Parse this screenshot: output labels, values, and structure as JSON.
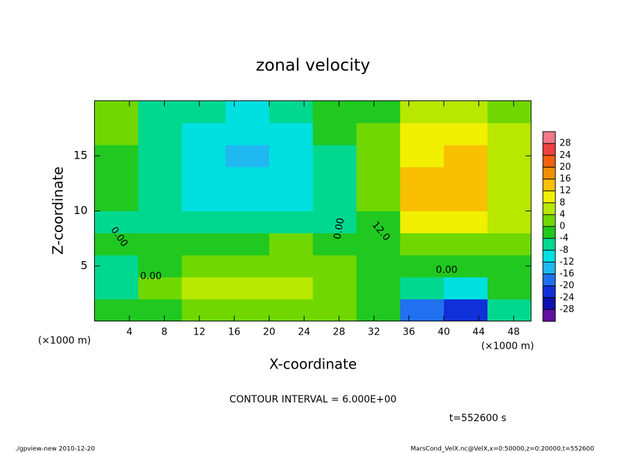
{
  "chart_data": {
    "type": "contour",
    "title": "zonal velocity",
    "x_label": "X-coordinate",
    "y_label": "Z-coordinate",
    "x_unit": "(×1000 m)",
    "y_unit": "(×1000 m)",
    "contour_interval": "CONTOUR INTERVAL = 6.000E+00",
    "time": "t=552600 s",
    "footer_left": "./gpview-new  2010-12-20",
    "footer_right": "MarsCond_VelX.nc@VelX,x=0:50000,z=0:20000,t=552600",
    "annotations": [
      "0.00",
      "0.00",
      "0.00",
      "12.0",
      "0.00"
    ],
    "xlim": [
      0,
      50
    ],
    "ylim": [
      0,
      20
    ],
    "xticks": [
      4,
      8,
      12,
      16,
      20,
      24,
      28,
      32,
      36,
      40,
      44,
      48
    ],
    "yticks": [
      5,
      10,
      15
    ],
    "x": [
      2.5,
      7.5,
      12.5,
      17.5,
      22.5,
      27.5,
      32.5,
      37.5,
      42.5,
      47.5
    ],
    "y": [
      1,
      3,
      5,
      7,
      9,
      11,
      13,
      15,
      17,
      19
    ],
    "z": [
      [
        -2,
        0,
        2,
        4,
        4,
        2,
        -2,
        -16,
        -22,
        -6
      ],
      [
        -4,
        2,
        6,
        6,
        8,
        4,
        0,
        -6,
        -10,
        -2
      ],
      [
        -4,
        0,
        2,
        4,
        4,
        2,
        -2,
        -2,
        -2,
        0
      ],
      [
        -2,
        -2,
        -2,
        0,
        2,
        0,
        -2,
        4,
        4,
        2
      ],
      [
        -4,
        -4,
        -6,
        -6,
        -6,
        -4,
        -2,
        12,
        12,
        6
      ],
      [
        -2,
        -6,
        -8,
        -10,
        -8,
        -4,
        2,
        14,
        14,
        8
      ],
      [
        -2,
        -6,
        -8,
        -10,
        -10,
        -6,
        4,
        14,
        16,
        8
      ],
      [
        0,
        -6,
        -8,
        -12,
        -10,
        -4,
        4,
        12,
        16,
        8
      ],
      [
        2,
        -4,
        -8,
        -10,
        -8,
        -2,
        2,
        10,
        12,
        6
      ],
      [
        2,
        -4,
        -6,
        -8,
        -6,
        -2,
        0,
        6,
        8,
        4
      ]
    ],
    "levels": [
      28,
      24,
      20,
      16,
      12,
      8,
      4,
      0,
      -4,
      -8,
      -12,
      -16,
      -20,
      -24,
      -28
    ],
    "colors": [
      "#f07888",
      "#f04040",
      "#f06010",
      "#f09000",
      "#f8c000",
      "#f0f000",
      "#b8e800",
      "#70d800",
      "#20c820",
      "#00d890",
      "#00e0e0",
      "#20b8f0",
      "#2070f0",
      "#1030d8",
      "#1010b0",
      "#6010a0"
    ]
  }
}
